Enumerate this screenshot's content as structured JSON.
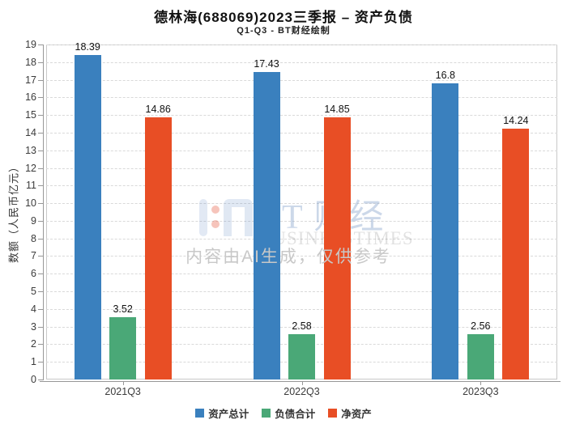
{
  "title": "德林海(688069)2023三季报 – 资产负债",
  "subtitle": "Q1-Q3 - BT财经绘制",
  "watermark": {
    "brand_cn": "BT 财经",
    "brand_en": "BUSINESSTIMES",
    "ai_note": "内容由AI生成，仅供参考"
  },
  "chart_data": {
    "type": "bar",
    "title": "德林海(688069)2023三季报 – 资产负债",
    "subtitle": "Q1-Q3 - BT财经绘制",
    "categories": [
      "2021Q3",
      "2022Q3",
      "2023Q3"
    ],
    "series": [
      {
        "name": "资产总计",
        "color": "#3a80be",
        "values": [
          18.39,
          17.43,
          16.8
        ]
      },
      {
        "name": "负债合计",
        "color": "#4aa877",
        "values": [
          3.52,
          2.58,
          2.56
        ]
      },
      {
        "name": "净资产",
        "color": "#e84e25",
        "values": [
          14.86,
          14.85,
          14.24
        ]
      }
    ],
    "xlabel": "",
    "ylabel": "数额（人民币亿元）",
    "ylim": [
      0,
      19
    ],
    "ytick_step": 1,
    "grid": true,
    "grid_style": "dashed",
    "legend_position": "bottom"
  }
}
